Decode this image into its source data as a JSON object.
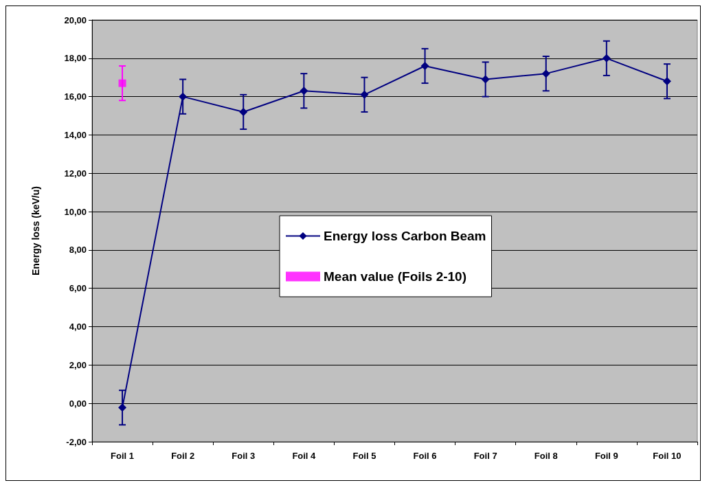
{
  "chart_data": {
    "type": "line",
    "categories": [
      "Foil 1",
      "Foil 2",
      "Foil 3",
      "Foil 4",
      "Foil 5",
      "Foil 6",
      "Foil 7",
      "Foil 8",
      "Foil 9",
      "Foil 10"
    ],
    "ylabel": "Energy loss (keV/u)",
    "series": [
      {
        "name": "Energy loss Carbon Beam",
        "color": "#000080",
        "marker": "diamond",
        "values": [
          -0.22,
          16.0,
          15.2,
          16.3,
          16.1,
          17.6,
          16.9,
          17.2,
          18.0,
          16.8
        ],
        "errors": [
          0.9,
          0.9,
          0.9,
          0.9,
          0.9,
          0.9,
          0.9,
          0.9,
          0.9,
          0.9
        ]
      },
      {
        "name": "Mean value (Foils 2-10)",
        "type": "scatter",
        "color": "#ff00ff",
        "marker": "square",
        "x": [
          "Foil 1"
        ],
        "values": [
          16.7
        ],
        "errors": [
          0.9
        ]
      }
    ],
    "ylim": [
      -2,
      20
    ],
    "yticks": [
      {
        "value": -2,
        "label": "-2,00"
      },
      {
        "value": 0,
        "label": "0,00"
      },
      {
        "value": 2,
        "label": "2,00"
      },
      {
        "value": 4,
        "label": "4,00"
      },
      {
        "value": 6,
        "label": "6,00"
      },
      {
        "value": 8,
        "label": "8,00"
      },
      {
        "value": 10,
        "label": "10,00"
      },
      {
        "value": 12,
        "label": "12,00"
      },
      {
        "value": 14,
        "label": "14,00"
      },
      {
        "value": 16,
        "label": "16,00"
      },
      {
        "value": 18,
        "label": "18,00"
      },
      {
        "value": 20,
        "label": "20,00"
      }
    ],
    "grid": "y",
    "legend": "center"
  }
}
